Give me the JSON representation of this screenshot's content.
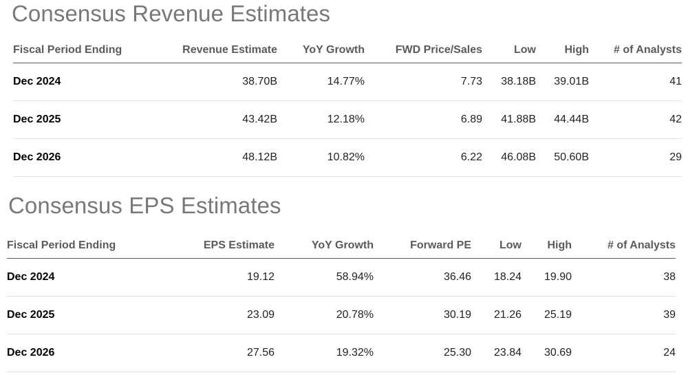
{
  "revenue": {
    "title": "Consensus Revenue Estimates",
    "headers": [
      "Fiscal Period Ending",
      "Revenue Estimate",
      "YoY Growth",
      "FWD Price/Sales",
      "Low",
      "High",
      "# of Analysts"
    ],
    "rows": [
      [
        "Dec 2024",
        "38.70B",
        "14.77%",
        "7.73",
        "38.18B",
        "39.01B",
        "41"
      ],
      [
        "Dec 2025",
        "43.42B",
        "12.18%",
        "6.89",
        "41.88B",
        "44.44B",
        "42"
      ],
      [
        "Dec 2026",
        "48.12B",
        "10.82%",
        "6.22",
        "46.08B",
        "50.60B",
        "29"
      ]
    ]
  },
  "eps": {
    "title": "Consensus EPS Estimates",
    "headers": [
      "Fiscal Period Ending",
      "EPS Estimate",
      "YoY Growth",
      "Forward PE",
      "Low",
      "High",
      "# of Analysts"
    ],
    "rows": [
      [
        "Dec 2024",
        "19.12",
        "58.94%",
        "36.46",
        "18.24",
        "19.90",
        "38"
      ],
      [
        "Dec 2025",
        "23.09",
        "20.78%",
        "30.19",
        "21.26",
        "25.19",
        "39"
      ],
      [
        "Dec 2026",
        "27.56",
        "19.32%",
        "25.30",
        "23.84",
        "30.69",
        "24"
      ]
    ]
  },
  "colors": {
    "title": "#787878",
    "header_text": "#5a5a5a",
    "header_rule": "#5c5c5c",
    "row_rule": "#e1e1e1"
  }
}
